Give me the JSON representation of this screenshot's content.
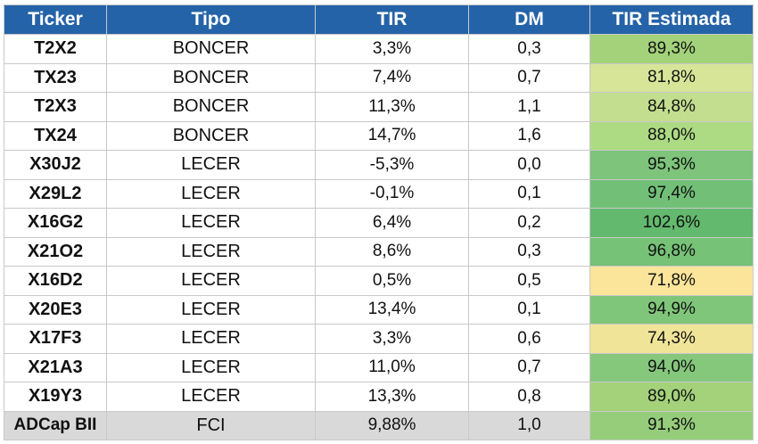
{
  "headers": [
    "Ticker",
    "Tipo",
    "TIR",
    "DM",
    "TIR Estimada"
  ],
  "rows": [
    {
      "ticker": "T2X2",
      "tipo": "BONCER",
      "tir": "3,3%",
      "dm": "0,3",
      "tir_estimada": "89,3%",
      "color": "#a3d27a"
    },
    {
      "ticker": "TX23",
      "tipo": "BONCER",
      "tir": "7,4%",
      "dm": "0,7",
      "tir_estimada": "81,8%",
      "color": "#d6e598"
    },
    {
      "ticker": "T2X3",
      "tipo": "BONCER",
      "tir": "11,3%",
      "dm": "1,1",
      "tir_estimada": "84,8%",
      "color": "#c3de8f"
    },
    {
      "ticker": "TX24",
      "tipo": "BONCER",
      "tir": "14,7%",
      "dm": "1,6",
      "tir_estimada": "88,0%",
      "color": "#addb84"
    },
    {
      "ticker": "X30J2",
      "tipo": "LECER",
      "tir": "-5,3%",
      "dm": "0,0",
      "tir_estimada": "95,3%",
      "color": "#7ec47a"
    },
    {
      "ticker": "X29L2",
      "tipo": "LECER",
      "tir": "-0,1%",
      "dm": "0,1",
      "tir_estimada": "97,4%",
      "color": "#72c078"
    },
    {
      "ticker": "X16G2",
      "tipo": "LECER",
      "tir": "6,4%",
      "dm": "0,2",
      "tir_estimada": "102,6%",
      "color": "#63b96e"
    },
    {
      "ticker": "X21O2",
      "tipo": "LECER",
      "tir": "8,6%",
      "dm": "0,3",
      "tir_estimada": "96,8%",
      "color": "#76c277"
    },
    {
      "ticker": "X16D2",
      "tipo": "LECER",
      "tir": "0,5%",
      "dm": "0,5",
      "tir_estimada": "71,8%",
      "color": "#fbe59a"
    },
    {
      "ticker": "X20E3",
      "tipo": "LECER",
      "tir": "13,4%",
      "dm": "0,1",
      "tir_estimada": "94,9%",
      "color": "#80c67a"
    },
    {
      "ticker": "X17F3",
      "tipo": "LECER",
      "tir": "3,3%",
      "dm": "0,6",
      "tir_estimada": "74,3%",
      "color": "#f0e498"
    },
    {
      "ticker": "X21A3",
      "tipo": "LECER",
      "tir": "11,0%",
      "dm": "0,7",
      "tir_estimada": "94,0%",
      "color": "#85c87c"
    },
    {
      "ticker": "X19Y3",
      "tipo": "LECER",
      "tir": "13,3%",
      "dm": "0,8",
      "tir_estimada": "89,0%",
      "color": "#a3d27a"
    },
    {
      "ticker": "ADCap BII",
      "tipo": "FCI",
      "tir": "9,88%",
      "dm": "1,0",
      "tir_estimada": "91,3%",
      "color": "#96cd7b"
    }
  ]
}
